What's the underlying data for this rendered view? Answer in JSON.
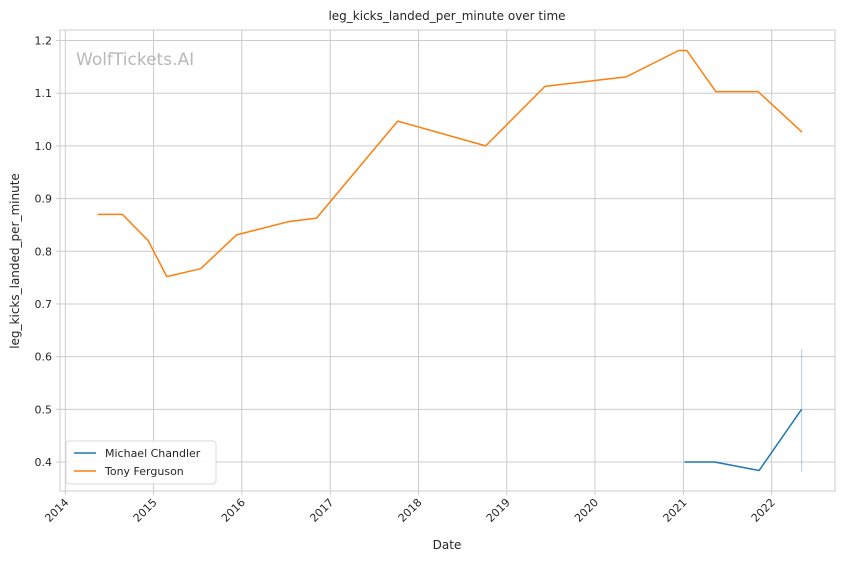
{
  "chart_data": {
    "type": "line",
    "title": "leg_kicks_landed_per_minute over time",
    "xlabel": "Date",
    "ylabel": "leg_kicks_landed_per_minute",
    "watermark": "WolfTickets.AI",
    "xlim": [
      "2013-12-10",
      "2022-09-20"
    ],
    "ylim": [
      0.345,
      1.22
    ],
    "x_ticks": [
      "2014",
      "2015",
      "2016",
      "2017",
      "2018",
      "2019",
      "2020",
      "2021",
      "2022"
    ],
    "y_ticks": [
      0.4,
      0.5,
      0.6,
      0.7,
      0.8,
      0.9,
      1.0,
      1.1,
      1.2
    ],
    "y_tick_labels": [
      "0.4",
      "0.5",
      "0.6",
      "0.7",
      "0.8",
      "0.9",
      "1.0",
      "1.1",
      "1.2"
    ],
    "grid": true,
    "legend_position": "lower-left",
    "series": [
      {
        "name": "Michael Chandler",
        "color": "#1f77b4",
        "points": [
          {
            "x": "2021-01-05",
            "y": 0.4
          },
          {
            "x": "2021-05-10",
            "y": 0.4
          },
          {
            "x": "2021-11-10",
            "y": 0.384
          },
          {
            "x": "2022-05-05",
            "y": 0.5
          }
        ],
        "error_band": [
          {
            "x": "2022-05-05",
            "low": 0.382,
            "high": 0.615
          }
        ]
      },
      {
        "name": "Tony Ferguson",
        "color": "#ff7f0e",
        "points": [
          {
            "x": "2014-05-15",
            "y": 0.87
          },
          {
            "x": "2014-08-25",
            "y": 0.87
          },
          {
            "x": "2014-12-10",
            "y": 0.82
          },
          {
            "x": "2015-02-25",
            "y": 0.752
          },
          {
            "x": "2015-07-15",
            "y": 0.767
          },
          {
            "x": "2015-12-10",
            "y": 0.831
          },
          {
            "x": "2016-07-10",
            "y": 0.856
          },
          {
            "x": "2016-11-05",
            "y": 0.863
          },
          {
            "x": "2017-10-07",
            "y": 1.047
          },
          {
            "x": "2018-10-06",
            "y": 1.0
          },
          {
            "x": "2019-06-08",
            "y": 1.113
          },
          {
            "x": "2020-05-09",
            "y": 1.131
          },
          {
            "x": "2020-12-12",
            "y": 1.181
          },
          {
            "x": "2021-01-15",
            "y": 1.181
          },
          {
            "x": "2021-05-15",
            "y": 1.103
          },
          {
            "x": "2021-11-06",
            "y": 1.103
          },
          {
            "x": "2022-05-07",
            "y": 1.026
          }
        ]
      }
    ]
  }
}
